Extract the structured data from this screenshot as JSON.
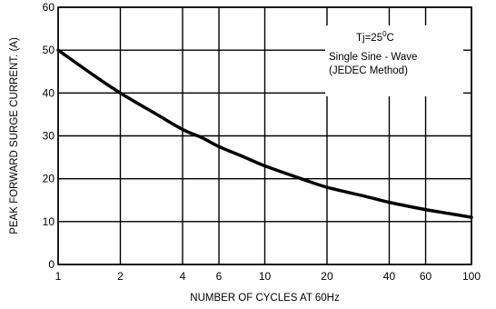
{
  "chart_data": {
    "type": "line",
    "xlabel": "NUMBER OF CYCLES AT 60Hz",
    "ylabel": "PEAK FORWARD SURGE CURRENT. (A)",
    "x_scale": "log",
    "xlim": [
      1,
      100
    ],
    "ylim": [
      0,
      60
    ],
    "x_ticks": [
      1,
      2,
      4,
      6,
      10,
      20,
      40,
      60,
      100
    ],
    "y_ticks": [
      0,
      10,
      20,
      30,
      40,
      50,
      60
    ],
    "grid": true,
    "annotations": [
      {
        "text": "Tj=25",
        "sup": "0",
        "suffix": "C"
      },
      {
        "text": "Single Sine - Wave"
      },
      {
        "text": "(JEDEC Method)"
      }
    ],
    "series": [
      {
        "x": [
          1,
          1.5,
          2,
          3,
          4,
          5,
          6,
          8,
          10,
          15,
          20,
          30,
          40,
          60,
          80,
          100
        ],
        "y": [
          50,
          44,
          40,
          35,
          31.5,
          29.5,
          27.5,
          25,
          23,
          20,
          18,
          16,
          14.5,
          12.8,
          11.8,
          11
        ]
      }
    ]
  }
}
